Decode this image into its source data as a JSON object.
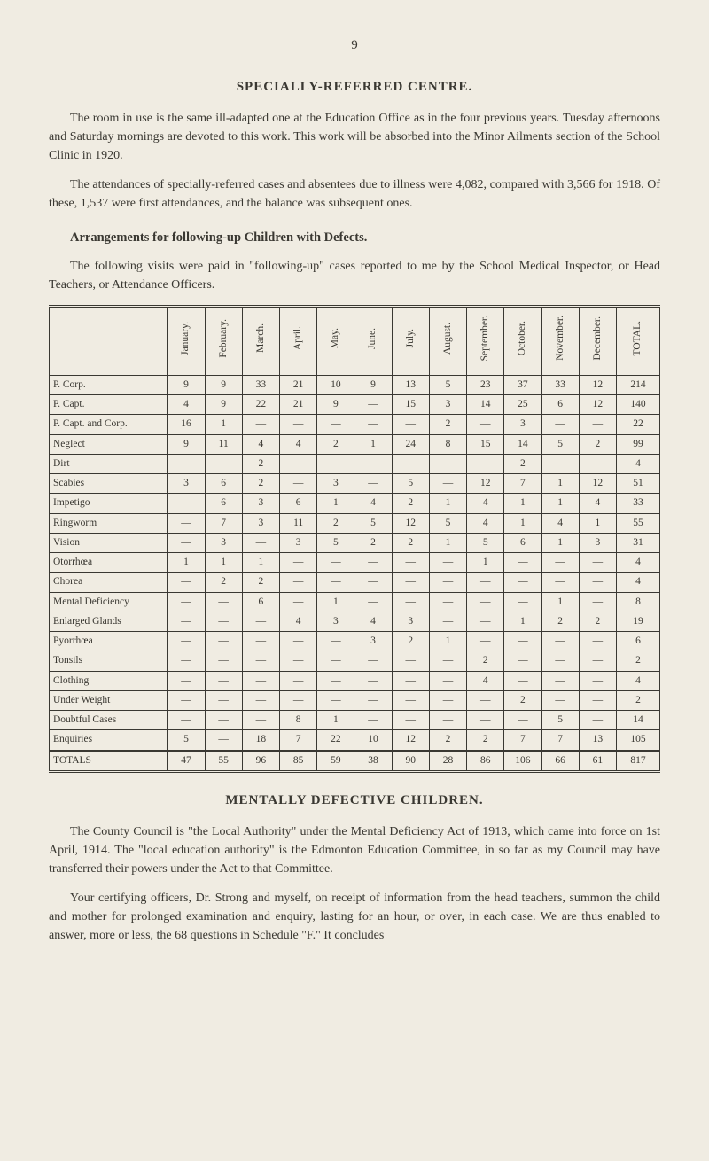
{
  "page_number": "9",
  "section1": {
    "title": "SPECIALLY-REFERRED CENTRE.",
    "para1": "The room in use is the same ill-adapted one at the Education Office as in the four previous years. Tuesday afternoons and Saturday mornings are devoted to this work. This work will be absorbed into the Minor Ailments section of the School Clinic in 1920.",
    "para2": "The attendances of specially-referred cases and absentees due to illness were 4,082, compared with 3,566 for 1918. Of these, 1,537 were first attendances, and the balance was subsequent ones.",
    "subheading": "Arrangements for following-up Children with Defects.",
    "para3": "The following visits were paid in \"following-up\" cases reported to me by the School Medical Inspector, or Head Teachers, or Attendance Officers."
  },
  "table": {
    "columns": [
      "",
      "January.",
      "February.",
      "March.",
      "April.",
      "May.",
      "June.",
      "July.",
      "August.",
      "September.",
      "October.",
      "November.",
      "December.",
      "TOTAL."
    ],
    "rows": [
      {
        "label": "P. Corp.",
        "cells": [
          "9",
          "9",
          "33",
          "21",
          "10",
          "9",
          "13",
          "5",
          "23",
          "37",
          "33",
          "12",
          "214"
        ]
      },
      {
        "label": "P. Capt.",
        "cells": [
          "4",
          "9",
          "22",
          "21",
          "9",
          "—",
          "15",
          "3",
          "14",
          "25",
          "6",
          "12",
          "140"
        ]
      },
      {
        "label": "P. Capt. and Corp.",
        "cells": [
          "16",
          "1",
          "—",
          "—",
          "—",
          "—",
          "—",
          "2",
          "—",
          "3",
          "—",
          "—",
          "22"
        ]
      },
      {
        "label": "Neglect",
        "cells": [
          "9",
          "11",
          "4",
          "4",
          "2",
          "1",
          "24",
          "8",
          "15",
          "14",
          "5",
          "2",
          "99"
        ]
      },
      {
        "label": "Dirt",
        "cells": [
          "—",
          "—",
          "2",
          "—",
          "—",
          "—",
          "—",
          "—",
          "—",
          "2",
          "—",
          "—",
          "4"
        ]
      },
      {
        "label": "Scabies",
        "cells": [
          "3",
          "6",
          "2",
          "—",
          "3",
          "—",
          "5",
          "—",
          "12",
          "7",
          "1",
          "12",
          "51"
        ]
      },
      {
        "label": "Impetigo",
        "cells": [
          "—",
          "6",
          "3",
          "6",
          "1",
          "4",
          "2",
          "1",
          "4",
          "1",
          "1",
          "4",
          "33"
        ]
      },
      {
        "label": "Ringworm",
        "cells": [
          "—",
          "7",
          "3",
          "11",
          "2",
          "5",
          "12",
          "5",
          "4",
          "1",
          "4",
          "1",
          "55"
        ]
      },
      {
        "label": "Vision",
        "cells": [
          "—",
          "3",
          "—",
          "3",
          "5",
          "2",
          "2",
          "1",
          "5",
          "6",
          "1",
          "3",
          "31"
        ]
      },
      {
        "label": "Otorrhœa",
        "cells": [
          "1",
          "1",
          "1",
          "—",
          "—",
          "—",
          "—",
          "—",
          "1",
          "—",
          "—",
          "—",
          "4"
        ]
      },
      {
        "label": "Chorea",
        "cells": [
          "—",
          "2",
          "2",
          "—",
          "—",
          "—",
          "—",
          "—",
          "—",
          "—",
          "—",
          "—",
          "4"
        ]
      },
      {
        "label": "Mental Deficiency",
        "cells": [
          "—",
          "—",
          "6",
          "—",
          "1",
          "—",
          "—",
          "—",
          "—",
          "—",
          "1",
          "—",
          "8"
        ]
      },
      {
        "label": "Enlarged Glands",
        "cells": [
          "—",
          "—",
          "—",
          "4",
          "3",
          "4",
          "3",
          "—",
          "—",
          "1",
          "2",
          "2",
          "19"
        ]
      },
      {
        "label": "Pyorrhœa",
        "cells": [
          "—",
          "—",
          "—",
          "—",
          "—",
          "3",
          "2",
          "1",
          "—",
          "—",
          "—",
          "—",
          "6"
        ]
      },
      {
        "label": "Tonsils",
        "cells": [
          "—",
          "—",
          "—",
          "—",
          "—",
          "—",
          "—",
          "—",
          "2",
          "—",
          "—",
          "—",
          "2"
        ]
      },
      {
        "label": "Clothing",
        "cells": [
          "—",
          "—",
          "—",
          "—",
          "—",
          "—",
          "—",
          "—",
          "4",
          "—",
          "—",
          "—",
          "4"
        ]
      },
      {
        "label": "Under Weight",
        "cells": [
          "—",
          "—",
          "—",
          "—",
          "—",
          "—",
          "—",
          "—",
          "—",
          "2",
          "—",
          "—",
          "2"
        ]
      },
      {
        "label": "Doubtful Cases",
        "cells": [
          "—",
          "—",
          "—",
          "8",
          "1",
          "—",
          "—",
          "—",
          "—",
          "—",
          "5",
          "—",
          "14"
        ]
      },
      {
        "label": "Enquiries",
        "cells": [
          "5",
          "—",
          "18",
          "7",
          "22",
          "10",
          "12",
          "2",
          "2",
          "7",
          "7",
          "13",
          "105"
        ]
      }
    ],
    "totals": {
      "label": "TOTALS",
      "cells": [
        "47",
        "55",
        "96",
        "85",
        "59",
        "38",
        "90",
        "28",
        "86",
        "106",
        "66",
        "61",
        "817"
      ]
    }
  },
  "section2": {
    "title": "MENTALLY DEFECTIVE CHILDREN.",
    "para1": "The County Council is \"the Local Authority\" under the Mental Deficiency Act of 1913, which came into force on 1st April, 1914. The \"local education authority\" is the Edmonton Education Committee, in so far as my Council may have transferred their powers under the Act to that Committee.",
    "para2": "Your certifying officers, Dr. Strong and myself, on receipt of information from the head teachers, summon the child and mother for prolonged examination and enquiry, lasting for an hour, or over, in each case. We are thus enabled to answer, more or less, the 68 questions in Schedule \"F.\" It concludes"
  },
  "style": {
    "background_color": "#f0ece2",
    "text_color": "#3a3832",
    "body_font_size": 14,
    "table_font_size": 11.5,
    "heading_font_size": 15,
    "font_family": "Georgia, 'Times New Roman', serif"
  }
}
